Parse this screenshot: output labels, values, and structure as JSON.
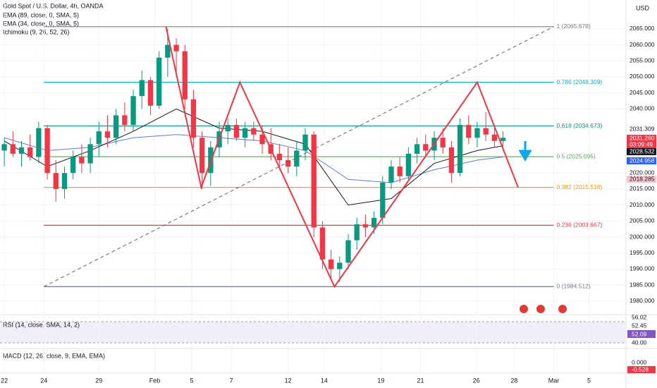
{
  "chart_data": {
    "type": "candlestick",
    "title": "Gold Spot / U.S. Dollar, 4h, OANDA",
    "indicators": [
      "EMA (89, close, 0, SMA, 5)",
      "EMA (34, close, 0, SMA, 5)",
      "Ichimoku (9, 26, 52, 26)"
    ],
    "currency": "USD",
    "open": [
      2027,
      2029,
      2026,
      2028,
      2025,
      2034,
      2020,
      2015,
      2020,
      2025,
      2023,
      2029,
      2033,
      2031,
      2038,
      2035,
      2044,
      2049,
      2041,
      2056,
      2060,
      2058,
      2043,
      2031,
      2020,
      2028,
      2033,
      2035,
      2031,
      2034,
      2032,
      2029,
      2026,
      2024,
      2022,
      2027,
      2032,
      2003,
      1993,
      1990,
      1992,
      1999,
      2004,
      2003,
      2006,
      2017,
      2022,
      2019,
      2026,
      2029,
      2027,
      2031,
      2028,
      2020,
      2035,
      2031,
      2034,
      2032,
      2030
    ],
    "high": [
      2031,
      2033,
      2030,
      2032,
      2036,
      2035,
      2024,
      2022,
      2027,
      2029,
      2031,
      2036,
      2038,
      2040,
      2042,
      2046,
      2052,
      2050,
      2058,
      2065,
      2062,
      2060,
      2046,
      2033,
      2030,
      2036,
      2037,
      2037,
      2036,
      2036,
      2035,
      2034,
      2029,
      2028,
      2030,
      2034,
      2033,
      2005,
      1996,
      1994,
      2001,
      2006,
      2007,
      2008,
      2019,
      2024,
      2025,
      2028,
      2031,
      2032,
      2033,
      2034,
      2030,
      2037,
      2038,
      2036,
      2039,
      2035,
      2033
    ],
    "low": [
      2022,
      2025,
      2022,
      2024,
      2023,
      2018,
      2011,
      2012,
      2018,
      2020,
      2020,
      2025,
      2028,
      2029,
      2033,
      2033,
      2040,
      2038,
      2040,
      2050,
      2050,
      2040,
      2028,
      2015,
      2016,
      2025,
      2029,
      2030,
      2028,
      2030,
      2026,
      2024,
      2021,
      2020,
      2019,
      2024,
      2000,
      1990,
      1987,
      1986,
      1990,
      1996,
      2000,
      2001,
      2004,
      2015,
      2017,
      2018,
      2023,
      2025,
      2024,
      2026,
      2017,
      2019,
      2029,
      2028,
      2030,
      2028,
      2027
    ],
    "close": [
      2029,
      2026,
      2028,
      2025,
      2034,
      2020,
      2015,
      2020,
      2025,
      2023,
      2029,
      2033,
      2031,
      2038,
      2035,
      2044,
      2049,
      2041,
      2056,
      2060,
      2058,
      2043,
      2031,
      2020,
      2028,
      2033,
      2035,
      2031,
      2034,
      2032,
      2029,
      2026,
      2024,
      2022,
      2027,
      2032,
      2003,
      1993,
      1990,
      1992,
      1999,
      2004,
      2003,
      2006,
      2017,
      2022,
      2019,
      2026,
      2029,
      2027,
      2031,
      2028,
      2020,
      2035,
      2031,
      2034,
      2032,
      2030,
      2031
    ],
    "up_color": "#089981",
    "down_color": "#f23645",
    "series": [
      {
        "name": "EMA (89, close, 0, SMA, 5)",
        "color": "#5b7fd6",
        "x": [
          0,
          5,
          10,
          15,
          20,
          25,
          30,
          35,
          40,
          45,
          50,
          55,
          58
        ],
        "values": [
          2031,
          2027,
          2028,
          2031,
          2032,
          2031,
          2030,
          2027,
          2018,
          2017,
          2021,
          2024,
          2025
        ]
      },
      {
        "name": "EMA (34, close, 0, SMA, 5)",
        "color": "#131722",
        "x": [
          0,
          5,
          10,
          15,
          20,
          25,
          30,
          35,
          40,
          45,
          50,
          55,
          58
        ],
        "values": [
          2030,
          2022,
          2027,
          2033,
          2040,
          2034,
          2033,
          2029,
          2010,
          2012,
          2023,
          2027,
          2028.5
        ]
      }
    ],
    "fib_levels": [
      {
        "label": "1 (2065.678)",
        "value": 2065.678,
        "color": "#787b86"
      },
      {
        "label": "0.786 (2048.309)",
        "value": 2048.309,
        "color": "#00bcd4"
      },
      {
        "label": "0.618 (2034.673)",
        "value": 2034.673,
        "color": "#089981"
      },
      {
        "label": "0.5 (2025.095)",
        "value": 2025.095,
        "color": "#4caf50"
      },
      {
        "label": "0.382 (2015.518)",
        "value": 2015.518,
        "color": "#ff9800"
      },
      {
        "label": "0.236 (2003.667)",
        "value": 2003.667,
        "color": "#f23645"
      },
      {
        "label": "0 (1984.512)",
        "value": 1984.512,
        "color": "#787b86"
      }
    ],
    "fib_x": [
      4.6,
      63.9
    ],
    "pattern": {
      "x": [
        18.8,
        22.9,
        27.4,
        38.4,
        55,
        59.75
      ],
      "y": [
        2065.678,
        2015.518,
        2048.309,
        1984.512,
        2048.309,
        2015.518
      ],
      "color": "#f23645"
    },
    "trend": {
      "x": [
        4.6,
        63.9
      ],
      "y": [
        1984.512,
        2065.678
      ]
    },
    "price_labels": [
      {
        "label": "2031.309",
        "bg": "#ffffff",
        "fg": "#131722"
      },
      {
        "label": "2031.260",
        "bg": "#f23645",
        "fg": "#ffffff"
      },
      {
        "label": "03:09:49",
        "bg": "#f23645",
        "fg": "#ffffff"
      },
      {
        "label": "2028.532",
        "bg": "#131722",
        "fg": "#ffffff"
      },
      {
        "label": "2024.958",
        "bg": "#2962ff",
        "fg": "#ffffff"
      },
      {
        "label": "2018.285",
        "bg": "#f7c6cc",
        "fg": "#131722"
      }
    ],
    "xlim": [
      -0.5,
      72.3
    ],
    "ylim": [
      1976,
      2074
    ],
    "yticks": [
      {
        "value": 1980,
        "label": "1980.000"
      },
      {
        "value": 1985,
        "label": "1985.000"
      },
      {
        "value": 1990,
        "label": "1990.000"
      },
      {
        "value": 1995,
        "label": "1995.000"
      },
      {
        "value": 2000,
        "label": "2000.000"
      },
      {
        "value": 2005,
        "label": "2005.000"
      },
      {
        "value": 2010,
        "label": "2010.000"
      },
      {
        "value": 2015,
        "label": "2015.000"
      },
      {
        "value": 2020,
        "label": "2020.000"
      },
      {
        "value": 2040,
        "label": "2040.000"
      },
      {
        "value": 2045,
        "label": "2045.000"
      },
      {
        "value": 2050,
        "label": "2050.000"
      },
      {
        "value": 2055,
        "label": "2055.000"
      },
      {
        "value": 2060,
        "label": "2060.000"
      },
      {
        "value": 2065,
        "label": "2065.000"
      }
    ],
    "xticks": [
      {
        "value": 0,
        "label": "22"
      },
      {
        "value": 4.6,
        "label": "24"
      },
      {
        "value": 11,
        "label": "29"
      },
      {
        "value": 17.5,
        "label": "Feb"
      },
      {
        "value": 21.8,
        "label": "5"
      },
      {
        "value": 26.4,
        "label": "7"
      },
      {
        "value": 33,
        "label": "12"
      },
      {
        "value": 37.2,
        "label": "14"
      },
      {
        "value": 43.8,
        "label": "19"
      },
      {
        "value": 48.4,
        "label": "21"
      },
      {
        "value": 54.9,
        "label": "26"
      },
      {
        "value": 59.3,
        "label": "28"
      },
      {
        "value": 63.9,
        "label": "Mar"
      },
      {
        "value": 68,
        "label": "5"
      }
    ],
    "rsi": {
      "title": "RSI (14, close, SMA, 14, 2)",
      "labels": [
        "56.02",
        "52.45",
        "52.09",
        "40.00"
      ]
    },
    "macd": {
      "title": "MACD (12, 26, close, 9, EMA, EMA)",
      "labels": [
        "0.000",
        "-0.528"
      ]
    }
  }
}
